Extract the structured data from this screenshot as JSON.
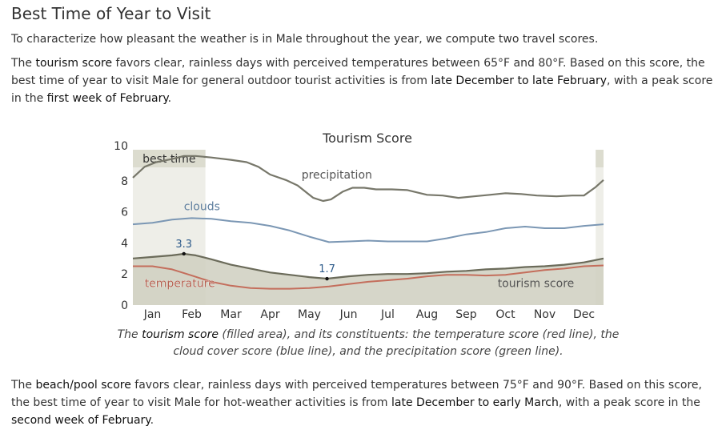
{
  "header": {
    "title": "Best Time of Year to Visit"
  },
  "intro": "To characterize how pleasant the weather is in Male throughout the year, we compute two travel scores.",
  "tourism_paragraph": {
    "t1": "The ",
    "term": "tourism score",
    "t2": " favors clear, rainless days with perceived temperatures between 65°F and 80°F. Based on this score, the best time of year to visit Male for general outdoor tourist activities is from ",
    "range": "late December to late February",
    "t3": ", with a peak score in the ",
    "peak": "first week of February",
    "t4": "."
  },
  "beach_paragraph": {
    "t1": "The ",
    "term": "beach/pool score",
    "t2": " favors clear, rainless days with perceived temperatures between 75°F and 90°F. Based on this score, the best time of year to visit Male for hot-weather activities is from ",
    "range": "late December to early March",
    "t3": ", with a peak score in the ",
    "peak": "second week of February",
    "t4": "."
  },
  "caption": {
    "t1": "The ",
    "term": "tourism score",
    "t2": " (filled area), and its constituents: the temperature score (red line), the cloud cover score (blue line), and the precipitation score (green line)."
  },
  "chart_data": {
    "type": "area",
    "title": "Tourism Score",
    "x_unit": "month",
    "xlim": [
      0,
      12
    ],
    "ylim": [
      0,
      10
    ],
    "yticks": [
      0,
      2,
      4,
      6,
      8,
      10
    ],
    "months": [
      "Jan",
      "Feb",
      "Mar",
      "Apr",
      "May",
      "Jun",
      "Jul",
      "Aug",
      "Sep",
      "Oct",
      "Nov",
      "Dec"
    ],
    "best_time": {
      "label": "best time",
      "ranges": [
        [
          0,
          1.85
        ],
        [
          11.8,
          12
        ]
      ]
    },
    "colors": {
      "precipitation": "#77776a",
      "clouds": "#7b97b4",
      "temperature": "#c46e5c",
      "tourism_fill": "#cfcfc0",
      "tourism_line": "#6b6b5a",
      "best_band": "#eeeee8",
      "label": "#555555",
      "annotation": "#2c5a8a"
    },
    "series": [
      {
        "name": "precipitation",
        "x": [
          0,
          0.3,
          0.6,
          1.0,
          1.3,
          1.6,
          2.0,
          2.5,
          2.9,
          3.2,
          3.5,
          3.9,
          4.2,
          4.4,
          4.6,
          4.85,
          5.05,
          5.35,
          5.6,
          5.9,
          6.2,
          6.6,
          7.0,
          7.5,
          7.9,
          8.3,
          8.7,
          9.1,
          9.5,
          9.9,
          10.3,
          10.8,
          11.2,
          11.5,
          11.8,
          12.0
        ],
        "y": [
          8.2,
          8.9,
          9.2,
          9.4,
          9.6,
          9.6,
          9.5,
          9.35,
          9.2,
          8.9,
          8.4,
          8.05,
          7.7,
          7.3,
          6.9,
          6.7,
          6.8,
          7.3,
          7.55,
          7.55,
          7.45,
          7.45,
          7.4,
          7.1,
          7.05,
          6.9,
          7.0,
          7.1,
          7.2,
          7.15,
          7.05,
          7.0,
          7.05,
          7.05,
          7.6,
          8.05
        ]
      },
      {
        "name": "clouds",
        "x": [
          0,
          0.5,
          1.0,
          1.5,
          2.0,
          2.5,
          3.0,
          3.5,
          4.0,
          4.5,
          5.0,
          5.5,
          6.0,
          6.5,
          7.0,
          7.5,
          8.0,
          8.5,
          9.0,
          9.5,
          10.0,
          10.5,
          11.0,
          11.5,
          12.0
        ],
        "y": [
          5.2,
          5.3,
          5.5,
          5.6,
          5.55,
          5.4,
          5.3,
          5.1,
          4.8,
          4.4,
          4.05,
          4.1,
          4.15,
          4.1,
          4.1,
          4.1,
          4.3,
          4.55,
          4.7,
          4.95,
          5.05,
          4.95,
          4.95,
          5.1,
          5.2
        ]
      },
      {
        "name": "temperature",
        "x": [
          0,
          0.5,
          1.0,
          1.5,
          2.0,
          2.5,
          3.0,
          3.5,
          4.0,
          4.5,
          5.0,
          5.5,
          6.0,
          6.5,
          7.0,
          7.5,
          8.0,
          8.5,
          9.0,
          9.5,
          10.0,
          10.5,
          11.0,
          11.5,
          12.0
        ],
        "y": [
          2.5,
          2.5,
          2.3,
          1.9,
          1.5,
          1.25,
          1.1,
          1.05,
          1.05,
          1.1,
          1.2,
          1.35,
          1.5,
          1.6,
          1.7,
          1.85,
          1.95,
          1.95,
          1.9,
          1.95,
          2.1,
          2.25,
          2.35,
          2.5,
          2.55
        ]
      },
      {
        "name": "tourism score",
        "x": [
          0,
          0.5,
          1.0,
          1.3,
          1.6,
          2.0,
          2.5,
          3.0,
          3.5,
          4.0,
          4.5,
          4.95,
          5.5,
          6.0,
          6.5,
          7.0,
          7.5,
          8.0,
          8.5,
          9.0,
          9.5,
          10.0,
          10.5,
          11.0,
          11.5,
          12.0
        ],
        "y": [
          3.0,
          3.1,
          3.2,
          3.3,
          3.2,
          2.95,
          2.6,
          2.35,
          2.1,
          1.95,
          1.8,
          1.7,
          1.85,
          1.95,
          2.0,
          2.0,
          2.05,
          2.15,
          2.2,
          2.3,
          2.35,
          2.45,
          2.5,
          2.6,
          2.75,
          3.0
        ]
      }
    ],
    "series_labels": [
      {
        "series": "precipitation",
        "text": "precipitation",
        "x": 4.3,
        "y": 8.15
      },
      {
        "series": "clouds",
        "text": "clouds",
        "x": 1.3,
        "y": 6.1
      },
      {
        "series": "temperature",
        "text": "temperature",
        "x": 0.3,
        "y": 1.15
      },
      {
        "series": "tourism score",
        "text": "tourism score",
        "x": 9.3,
        "y": 1.15
      }
    ],
    "annotations": [
      {
        "label": "3.3",
        "x": 1.3,
        "y": 3.3
      },
      {
        "label": "1.7",
        "x": 4.95,
        "y": 1.7
      }
    ]
  }
}
